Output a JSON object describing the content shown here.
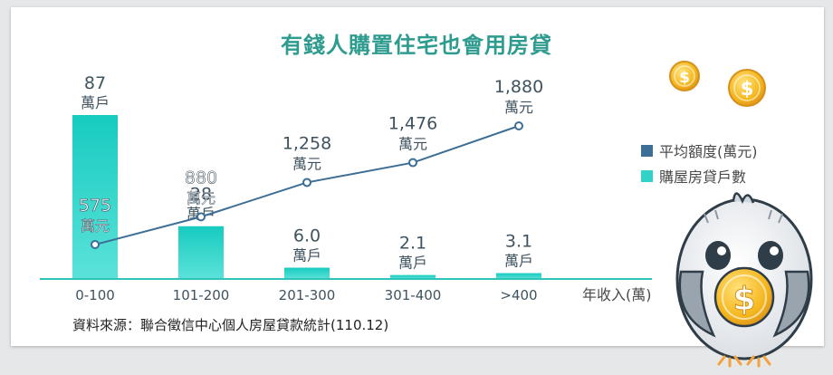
{
  "chart_data": {
    "type": "bar",
    "title": "有錢人購置住宅也會用房貸",
    "categories": [
      "0-100",
      "101-200",
      "201-300",
      "301-400",
      ">400"
    ],
    "x_axis_title": "年收入(萬)",
    "series": [
      {
        "name": "購屋房貸戶數",
        "type": "bar",
        "color": "#31d3c9",
        "values": [
          87,
          28,
          6.0,
          2.1,
          3.1
        ],
        "labels": [
          "87",
          "28",
          "6.0",
          "2.1",
          "3.1"
        ],
        "unit": "萬戶"
      },
      {
        "name": "平均額度(萬元)",
        "type": "line",
        "color": "#3d6e96",
        "values": [
          575,
          880,
          1258,
          1476,
          1880
        ],
        "labels": [
          "575",
          "880",
          "1,258",
          "1,476",
          "1,880"
        ],
        "unit": "萬元"
      }
    ],
    "legend_position": "right",
    "source": "資料來源：聯合徵信中心個人房屋貸款統計(110.12)"
  },
  "colors": {
    "title": "#2e9b8f",
    "bar_top": "#17cbbf",
    "bar_bottom": "#5be2da",
    "line": "#3d6e96",
    "axis": "#2ec4b8",
    "label": "#3f5360"
  },
  "decorations": [
    "coin-icon",
    "coin-icon",
    "owl-mascot-holding-coin"
  ]
}
